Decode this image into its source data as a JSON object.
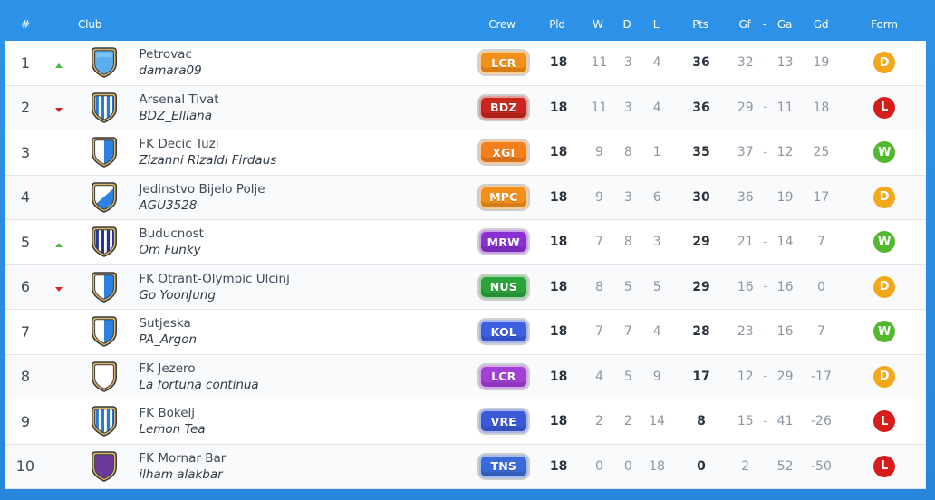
{
  "header": {
    "rank": "#",
    "club": "Club",
    "crew": "Crew",
    "pld": "Pld",
    "w": "W",
    "d": "D",
    "l": "L",
    "pts": "Pts",
    "gf": "Gf",
    "sep": "-",
    "ga": "Ga",
    "gd": "Gd",
    "form": "Form"
  },
  "colors": {
    "background": "#2a8be0",
    "trend_up": "#46b93a",
    "trend_down": "#d92121",
    "form_W": "#52b82f",
    "form_D": "#f3a81b",
    "form_L": "#d71c1c"
  },
  "rows": [
    {
      "rank": "1",
      "trend": "up",
      "crest": "plain-blue",
      "club": "Petrovac",
      "manager": "damara09",
      "crew": "LCR",
      "crew_color": "#f3901c",
      "pld": "18",
      "w": "11",
      "d": "3",
      "l": "4",
      "pts": "36",
      "gf": "32",
      "ga": "13",
      "gd": "19",
      "form": "D",
      "form_color": "#f3a81b"
    },
    {
      "rank": "2",
      "trend": "down",
      "crest": "stripes-blue",
      "club": "Arsenal Tivat",
      "manager": "BDZ_Elliana",
      "crew": "BDZ",
      "crew_color": "#c8271e",
      "pld": "18",
      "w": "11",
      "d": "3",
      "l": "4",
      "pts": "36",
      "gf": "29",
      "ga": "11",
      "gd": "18",
      "form": "L",
      "form_color": "#d71c1c"
    },
    {
      "rank": "3",
      "trend": "",
      "crest": "half-blue",
      "club": "FK Decic Tuzi",
      "manager": "Zizanni Rizaldi Firdaus",
      "crew": "XGI",
      "crew_color": "#f3801c",
      "pld": "18",
      "w": "9",
      "d": "8",
      "l": "1",
      "pts": "35",
      "gf": "37",
      "ga": "12",
      "gd": "25",
      "form": "W",
      "form_color": "#52b82f"
    },
    {
      "rank": "4",
      "trend": "",
      "crest": "sash-blue",
      "club": "Jedinstvo Bijelo Polje",
      "manager": "AGU3528",
      "crew": "MPC",
      "crew_color": "#f3901c",
      "pld": "18",
      "w": "9",
      "d": "3",
      "l": "6",
      "pts": "30",
      "gf": "36",
      "ga": "19",
      "gd": "17",
      "form": "D",
      "form_color": "#f3a81b"
    },
    {
      "rank": "5",
      "trend": "up",
      "crest": "stripes-navy",
      "club": "Buducnost",
      "manager": "Om Funky",
      "crew": "MRW",
      "crew_color": "#8a2fd1",
      "pld": "18",
      "w": "7",
      "d": "8",
      "l": "3",
      "pts": "29",
      "gf": "21",
      "ga": "14",
      "gd": "7",
      "form": "W",
      "form_color": "#52b82f"
    },
    {
      "rank": "6",
      "trend": "down",
      "crest": "half-blue",
      "club": "FK Otrant-Olympic Ulcinj",
      "manager": "Go YoonJung",
      "crew": "NUS",
      "crew_color": "#2aa33a",
      "pld": "18",
      "w": "8",
      "d": "5",
      "l": "5",
      "pts": "29",
      "gf": "16",
      "ga": "16",
      "gd": "0",
      "form": "D",
      "form_color": "#f3a81b"
    },
    {
      "rank": "7",
      "trend": "",
      "crest": "half-blue",
      "club": "Sutjeska",
      "manager": "PA_Argon",
      "crew": "KOL",
      "crew_color": "#3d5fe0",
      "pld": "18",
      "w": "7",
      "d": "7",
      "l": "4",
      "pts": "28",
      "gf": "23",
      "ga": "16",
      "gd": "7",
      "form": "W",
      "form_color": "#52b82f"
    },
    {
      "rank": "8",
      "trend": "",
      "crest": "plain-white",
      "club": "FK Jezero",
      "manager": "La fortuna continua",
      "crew": "LCR",
      "crew_color": "#a23fd6",
      "pld": "18",
      "w": "4",
      "d": "5",
      "l": "9",
      "pts": "17",
      "gf": "12",
      "ga": "29",
      "gd": "-17",
      "form": "D",
      "form_color": "#f3a81b"
    },
    {
      "rank": "9",
      "trend": "",
      "crest": "stripes-blue",
      "club": "FK Bokelj",
      "manager": "Lemon Tea",
      "crew": "VRE",
      "crew_color": "#3a5ad8",
      "pld": "18",
      "w": "2",
      "d": "2",
      "l": "14",
      "pts": "8",
      "gf": "15",
      "ga": "41",
      "gd": "-26",
      "form": "L",
      "form_color": "#d71c1c"
    },
    {
      "rank": "10",
      "trend": "",
      "crest": "plain-purple",
      "club": "FK Mornar Bar",
      "manager": "ilham alakbar",
      "crew": "TNS",
      "crew_color": "#3a6ad8",
      "pld": "18",
      "w": "0",
      "d": "0",
      "l": "18",
      "pts": "0",
      "gf": "2",
      "ga": "52",
      "gd": "-50",
      "form": "L",
      "form_color": "#d71c1c"
    }
  ]
}
